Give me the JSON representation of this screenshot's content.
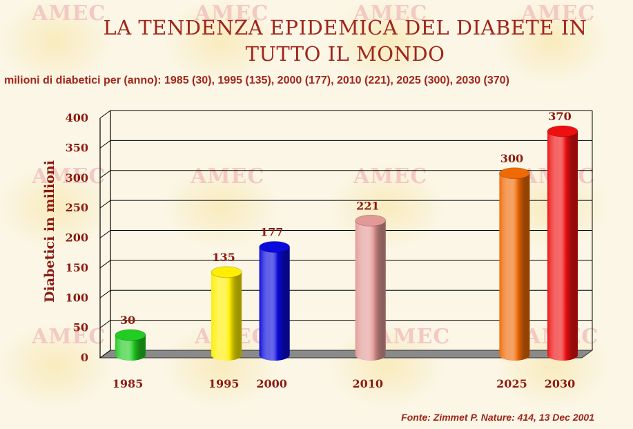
{
  "title_line1": "LA TENDENZA EPIDEMICA DEL DIABETE IN",
  "title_line2": "TUTTO IL MONDO",
  "subtitle": "milioni di diabetici per (anno): 1985 (30), 1995 (135), 2000 (177), 2010 (221), 2025 (300), 2030 (370)",
  "source": "Fonte: Zimmet P. Nature: 414, 13 Dec 2001",
  "watermark": "AMEC",
  "colors": {
    "text": "#a0261a",
    "bar_1985": "#22cc22",
    "bar_1995": "#ffee00",
    "bar_2000": "#0a0adc",
    "bar_2010": "#e39a96",
    "bar_2025": "#ef6a06",
    "bar_2030": "#ee1010"
  },
  "chart_data": {
    "type": "bar",
    "title": "",
    "xlabel": "",
    "ylabel": "Diabetici in milioni",
    "ylim": [
      0,
      400
    ],
    "yticks": [
      0,
      50,
      100,
      150,
      200,
      250,
      300,
      350,
      400
    ],
    "categories": [
      "1985",
      "1995",
      "2000",
      "2010",
      "2025",
      "2030"
    ],
    "year_values": [
      1985,
      1995,
      2000,
      2010,
      2025,
      2030
    ],
    "values": [
      30,
      135,
      177,
      221,
      300,
      370
    ],
    "data_labels": [
      "30",
      "135",
      "177",
      "221",
      "300",
      "370"
    ],
    "bar_colors": [
      "#22cc22",
      "#ffee00",
      "#0a0adc",
      "#e39a96",
      "#ef6a06",
      "#ee1010"
    ],
    "grid": true,
    "legend": "none"
  }
}
